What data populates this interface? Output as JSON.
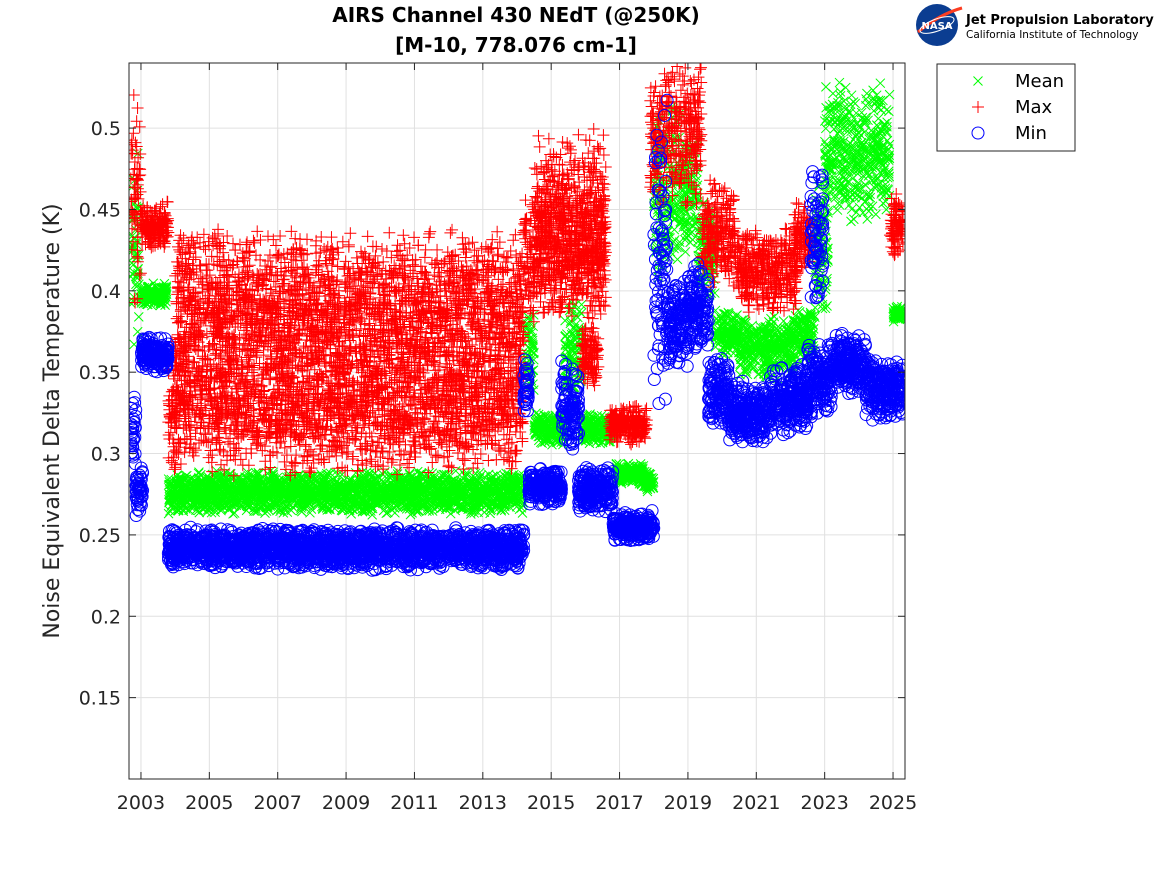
{
  "chart_data": {
    "type": "scatter",
    "title": [
      "AIRS Channel 430 NEdT (@250K)",
      "[M-10, 778.076 cm-1]"
    ],
    "xlabel": "",
    "ylabel": "Noise Equivalent Delta Temperature (K)",
    "xlim": [
      2002.65,
      2025.35
    ],
    "ylim": [
      0.1,
      0.54
    ],
    "x_ticks": [
      "2003",
      "2005",
      "2007",
      "2009",
      "2011",
      "2013",
      "2015",
      "2017",
      "2019",
      "2021",
      "2023",
      "2025"
    ],
    "y_ticks": [
      "0.15",
      "0.2",
      "0.25",
      "0.3",
      "0.35",
      "0.4",
      "0.45",
      "0.5"
    ],
    "grid": true,
    "legend_position": "outside-top-right",
    "series": [
      {
        "name": "Mean",
        "marker": "x",
        "color": "#00ff00",
        "segments": [
          [
            2002.7,
            2002.95,
            0.35,
            0.5
          ],
          [
            2003.0,
            2003.75,
            0.39,
            0.405
          ],
          [
            2003.8,
            2014.2,
            0.262,
            0.29
          ],
          [
            2014.25,
            2014.5,
            0.33,
            0.39
          ],
          [
            2014.5,
            2015.4,
            0.305,
            0.325
          ],
          [
            2015.4,
            2015.9,
            0.33,
            0.4
          ],
          [
            2015.9,
            2016.8,
            0.305,
            0.325
          ],
          [
            2016.9,
            2017.7,
            0.28,
            0.295
          ],
          [
            2017.7,
            2018.0,
            0.275,
            0.29
          ],
          [
            2018.0,
            2018.4,
            0.4,
            0.52
          ],
          [
            2018.4,
            2018.8,
            0.4,
            0.52
          ],
          [
            2018.8,
            2019.3,
            0.42,
            0.5
          ],
          [
            2019.3,
            2019.8,
            0.39,
            0.46
          ],
          [
            2019.8,
            2020.5,
            0.36,
            0.39
          ],
          [
            2020.5,
            2022.1,
            0.345,
            0.385
          ],
          [
            2022.1,
            2022.7,
            0.355,
            0.39
          ],
          [
            2022.7,
            2023.1,
            0.38,
            0.47
          ],
          [
            2023.0,
            2024.9,
            0.44,
            0.53
          ],
          [
            2025.0,
            2025.3,
            0.38,
            0.392
          ]
        ]
      },
      {
        "name": "Max",
        "marker": "+",
        "color": "#ff0000",
        "segments": [
          [
            2002.7,
            2003.0,
            0.38,
            0.53
          ],
          [
            2003.0,
            2003.8,
            0.425,
            0.455
          ],
          [
            2003.8,
            2014.2,
            0.285,
            0.38
          ],
          [
            2004.0,
            2014.2,
            0.34,
            0.44
          ],
          [
            2014.2,
            2016.6,
            0.38,
            0.46
          ],
          [
            2014.5,
            2016.6,
            0.4,
            0.5
          ],
          [
            2015.9,
            2016.4,
            0.34,
            0.38
          ],
          [
            2016.7,
            2017.8,
            0.305,
            0.33
          ],
          [
            2017.9,
            2018.3,
            0.45,
            0.53
          ],
          [
            2018.3,
            2019.4,
            0.45,
            0.545
          ],
          [
            2019.4,
            2020.4,
            0.4,
            0.47
          ],
          [
            2020.4,
            2022.2,
            0.385,
            0.44
          ],
          [
            2022.1,
            2022.6,
            0.41,
            0.455
          ],
          [
            2024.9,
            2025.3,
            0.42,
            0.46
          ]
        ]
      },
      {
        "name": "Min",
        "marker": "o",
        "color": "#0000ff",
        "segments": [
          [
            2002.7,
            2002.85,
            0.29,
            0.34
          ],
          [
            2002.85,
            2003.05,
            0.26,
            0.295
          ],
          [
            2003.0,
            2003.8,
            0.35,
            0.373
          ],
          [
            2003.8,
            2014.2,
            0.228,
            0.255
          ],
          [
            2014.2,
            2014.35,
            0.32,
            0.36
          ],
          [
            2014.35,
            2015.3,
            0.268,
            0.292
          ],
          [
            2015.3,
            2015.8,
            0.3,
            0.36
          ],
          [
            2015.8,
            2016.8,
            0.262,
            0.292
          ],
          [
            2016.8,
            2018.0,
            0.245,
            0.265
          ],
          [
            2018.0,
            2018.4,
            0.32,
            0.52
          ],
          [
            2018.4,
            2019.0,
            0.35,
            0.41
          ],
          [
            2019.0,
            2019.6,
            0.36,
            0.42
          ],
          [
            2019.6,
            2020.2,
            0.315,
            0.36
          ],
          [
            2020.2,
            2021.4,
            0.305,
            0.345
          ],
          [
            2021.4,
            2022.5,
            0.31,
            0.355
          ],
          [
            2022.5,
            2023.2,
            0.32,
            0.37
          ],
          [
            2022.6,
            2022.95,
            0.39,
            0.48
          ],
          [
            2023.2,
            2024.2,
            0.335,
            0.375
          ],
          [
            2024.2,
            2025.3,
            0.32,
            0.36
          ]
        ]
      }
    ]
  },
  "logo": {
    "org": "Jet Propulsion Laboratory",
    "sub": "California Institute of Technology",
    "badge": "NASA"
  }
}
